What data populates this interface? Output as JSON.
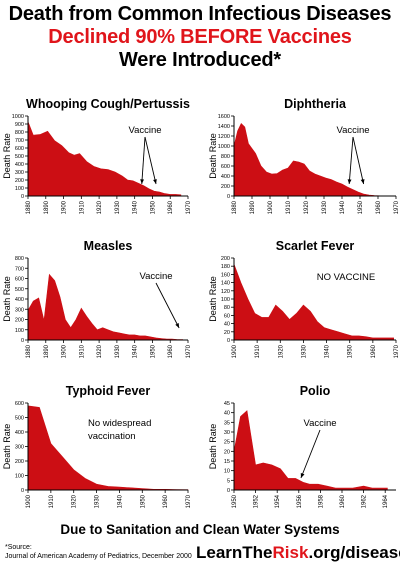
{
  "header": {
    "line1": "Death from Common Infectious Diseases",
    "line2": "Declined 90% BEFORE Vaccines",
    "line3": "Were Introduced*"
  },
  "ylabel": "Death Rate",
  "colors": {
    "fill": "#cc0e14",
    "accent": "#e0151b"
  },
  "chart_data": [
    {
      "type": "area",
      "title": "Whooping Cough/Pertussis",
      "ylabel": "Death Rate",
      "ylim": [
        0,
        1000
      ],
      "yticks": [
        0,
        100,
        200,
        300,
        400,
        500,
        600,
        700,
        800,
        900,
        1000
      ],
      "xlim": [
        1880,
        1970
      ],
      "xticks": [
        1880,
        1890,
        1900,
        1910,
        1920,
        1930,
        1940,
        1950,
        1960,
        1970
      ],
      "x": [
        1880,
        1883,
        1887,
        1891,
        1895,
        1899,
        1903,
        1906,
        1909,
        1913,
        1917,
        1921,
        1925,
        1929,
        1933,
        1936,
        1939,
        1942,
        1945,
        1948,
        1951,
        1954,
        1957,
        1960,
        1963,
        1966
      ],
      "y": [
        930,
        760,
        770,
        810,
        690,
        630,
        540,
        510,
        530,
        430,
        370,
        340,
        330,
        300,
        250,
        200,
        190,
        160,
        130,
        90,
        60,
        50,
        30,
        20,
        20,
        15
      ],
      "annotation": "Vaccine",
      "annotation_target_x": [
        1944,
        1952
      ]
    },
    {
      "type": "area",
      "title": "Diphtheria",
      "ylabel": "Death Rate",
      "ylim": [
        0,
        1600
      ],
      "yticks": [
        0,
        200,
        400,
        600,
        800,
        1000,
        1200,
        1400,
        1600
      ],
      "xlim": [
        1880,
        1970
      ],
      "xticks": [
        1880,
        1890,
        1900,
        1910,
        1920,
        1930,
        1940,
        1950,
        1960,
        1970
      ],
      "x": [
        1880,
        1882,
        1884,
        1886,
        1888,
        1890,
        1892,
        1895,
        1898,
        1901,
        1904,
        1907,
        1910,
        1913,
        1916,
        1919,
        1922,
        1925,
        1928,
        1931,
        1934,
        1937,
        1940,
        1943,
        1946,
        1949,
        1952,
        1955,
        1958,
        1961
      ],
      "y": [
        1000,
        1300,
        1450,
        1380,
        1050,
        950,
        850,
        600,
        480,
        440,
        450,
        520,
        560,
        700,
        680,
        640,
        500,
        440,
        400,
        360,
        330,
        280,
        240,
        180,
        130,
        80,
        40,
        20,
        10,
        5
      ],
      "annotation": "Vaccine",
      "annotation_target_x": [
        1944,
        1952
      ]
    },
    {
      "type": "area",
      "title": "Measles",
      "ylabel": "Death Rate",
      "ylim": [
        0,
        800
      ],
      "yticks": [
        0,
        100,
        200,
        300,
        400,
        500,
        600,
        700,
        800
      ],
      "xlim": [
        1880,
        1970
      ],
      "xticks": [
        1880,
        1890,
        1900,
        1910,
        1920,
        1930,
        1940,
        1950,
        1960,
        1970
      ],
      "x": [
        1880,
        1883,
        1886,
        1889,
        1892,
        1895,
        1898,
        1901,
        1904,
        1907,
        1910,
        1913,
        1916,
        1919,
        1922,
        1925,
        1928,
        1931,
        1934,
        1937,
        1940,
        1943,
        1946,
        1949,
        1952,
        1955,
        1958,
        1961,
        1964,
        1967
      ],
      "y": [
        290,
        380,
        410,
        190,
        640,
        580,
        420,
        200,
        120,
        200,
        310,
        230,
        160,
        100,
        120,
        100,
        80,
        70,
        60,
        50,
        50,
        40,
        40,
        30,
        20,
        15,
        10,
        10,
        5,
        5
      ],
      "annotation": "Vaccine",
      "annotation_target_x": [
        1965
      ]
    },
    {
      "type": "area",
      "title": "Scarlet Fever",
      "ylabel": "Death Rate",
      "ylim": [
        0,
        200
      ],
      "yticks": [
        0,
        20,
        40,
        60,
        80,
        100,
        120,
        140,
        160,
        180,
        200
      ],
      "xlim": [
        1900,
        1970
      ],
      "xticks": [
        1900,
        1910,
        1920,
        1930,
        1940,
        1950,
        1960,
        1970
      ],
      "x": [
        1900,
        1903,
        1906,
        1909,
        1912,
        1915,
        1918,
        1921,
        1924,
        1927,
        1930,
        1933,
        1936,
        1939,
        1942,
        1945,
        1948,
        1951,
        1954,
        1957,
        1960,
        1963,
        1966,
        1969
      ],
      "y": [
        185,
        140,
        100,
        65,
        55,
        55,
        85,
        70,
        50,
        65,
        85,
        70,
        45,
        30,
        25,
        20,
        15,
        10,
        10,
        8,
        5,
        5,
        5,
        5
      ],
      "annotation": "NO VACCINE"
    },
    {
      "type": "area",
      "title": "Typhoid Fever",
      "ylabel": "Death Rate",
      "ylim": [
        0,
        600
      ],
      "yticks": [
        0,
        100,
        200,
        300,
        400,
        500,
        600
      ],
      "xlim": [
        1900,
        1970
      ],
      "xticks": [
        1900,
        1910,
        1920,
        1930,
        1940,
        1950,
        1960,
        1970
      ],
      "x": [
        1900,
        1905,
        1910,
        1915,
        1920,
        1925,
        1930,
        1935,
        1940,
        1945,
        1950,
        1955,
        1960,
        1965,
        1970
      ],
      "y": [
        580,
        570,
        320,
        230,
        140,
        80,
        40,
        25,
        20,
        15,
        10,
        5,
        5,
        3,
        2
      ],
      "annotation": "No widespread vaccination"
    },
    {
      "type": "area",
      "title": "Polio",
      "ylabel": "Death Rate",
      "ylim": [
        0,
        45
      ],
      "yticks": [
        0,
        5,
        10,
        15,
        20,
        25,
        30,
        35,
        40,
        45
      ],
      "xlim": [
        1950,
        1965
      ],
      "xticks": [
        1950,
        1952,
        1954,
        1956,
        1958,
        1960,
        1962,
        1964
      ],
      "xticklabels": [
        "1950",
        "1952",
        "1954",
        "1956",
        "1958",
        "1960",
        "1962",
        "1964"
      ],
      "x": [
        1950,
        1950.6,
        1951.2,
        1952,
        1952.7,
        1953.5,
        1954.3,
        1955,
        1955.7,
        1956.4,
        1957,
        1957.8,
        1958.6,
        1959.4,
        1960.2,
        1961,
        1962,
        1962.8,
        1963.5,
        1964.2
      ],
      "y": [
        20,
        38,
        41,
        13,
        14,
        13,
        11,
        6,
        6,
        4,
        3,
        3,
        2,
        1,
        1,
        1,
        2,
        1,
        1,
        1
      ],
      "annotation": "Vaccine",
      "annotation_target_x": [
        1956.2
      ]
    }
  ],
  "footer": {
    "tagline": "Due to Sanitation and Clean Water Systems",
    "source_label": "*Source:",
    "source_text": "Journal of American Academy of Pediatrics, December 2000",
    "site_part1": "LearnThe",
    "site_part2": "Risk",
    "site_part3": ".org/diseases"
  }
}
